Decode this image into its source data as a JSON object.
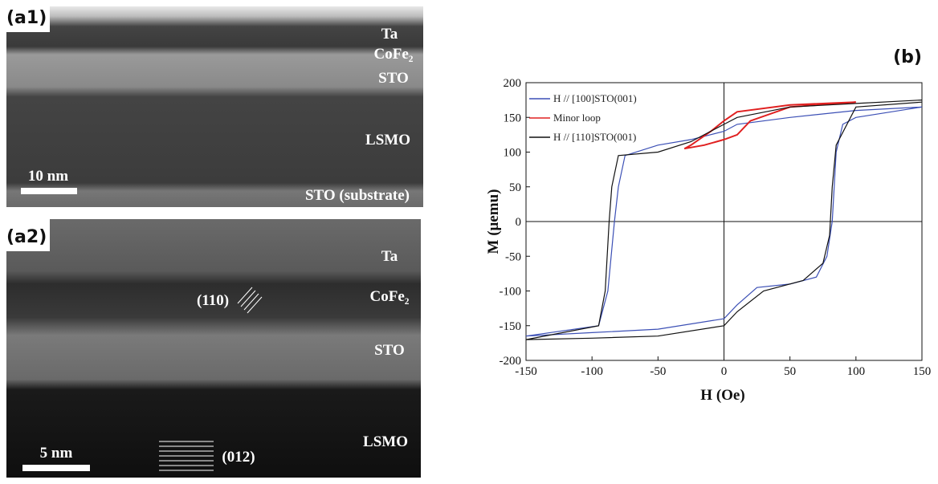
{
  "panels": [
    {
      "label": "(a1)",
      "layers": [
        "Ta",
        "CoFe₂",
        "STO",
        "LSMO",
        "STO (substrate)"
      ],
      "scale_bar": "10 nm"
    },
    {
      "label": "(a2)",
      "layers": [
        "Ta",
        "CoFe₂",
        "STO",
        "LSMO"
      ],
      "scale_bar": "5 nm",
      "annotations": [
        "(110)",
        "(012)"
      ]
    }
  ],
  "chart_data": {
    "type": "line",
    "label": "(b)",
    "x_label": "H (Oe)",
    "y_label": "M (μemu)",
    "xlim": [
      -150,
      150
    ],
    "ylim": [
      -200,
      200
    ],
    "xticks": [
      -150,
      -100,
      -50,
      0,
      50,
      100,
      150
    ],
    "yticks": [
      -200,
      -150,
      -100,
      -50,
      0,
      50,
      100,
      150,
      200
    ],
    "series": [
      {
        "name": "H // [100]STO(001)",
        "color": "#3b4fb5",
        "x": [
          150,
          100,
          50,
          10,
          0,
          -25,
          -50,
          -75,
          -80,
          -83,
          -88,
          -95,
          -150,
          -100,
          -50,
          0,
          10,
          25,
          50,
          70,
          78,
          82,
          85,
          90,
          100,
          150
        ],
        "values": [
          165,
          160,
          150,
          140,
          130,
          118,
          110,
          95,
          50,
          0,
          -100,
          -150,
          -165,
          -160,
          -155,
          -140,
          -120,
          -95,
          -90,
          -80,
          -50,
          0,
          100,
          140,
          150,
          165
        ]
      },
      {
        "name": "Minor loop",
        "color": "#e02020",
        "x": [
          100,
          50,
          10,
          0,
          -10,
          -25,
          -30,
          -15,
          0,
          10,
          20,
          50,
          100
        ],
        "values": [
          172,
          168,
          158,
          145,
          130,
          110,
          105,
          110,
          118,
          125,
          145,
          165,
          172
        ]
      },
      {
        "name": "H // [110]STO(001)",
        "color": "#111111",
        "x": [
          150,
          100,
          50,
          10,
          0,
          -25,
          -50,
          -80,
          -85,
          -87,
          -90,
          -95,
          -150,
          -100,
          -50,
          0,
          10,
          30,
          60,
          75,
          80,
          82,
          85,
          100,
          150
        ],
        "values": [
          175,
          170,
          165,
          150,
          140,
          115,
          100,
          95,
          50,
          0,
          -100,
          -150,
          -170,
          -168,
          -165,
          -150,
          -130,
          -100,
          -85,
          -60,
          -20,
          50,
          110,
          165,
          172
        ]
      }
    ]
  }
}
